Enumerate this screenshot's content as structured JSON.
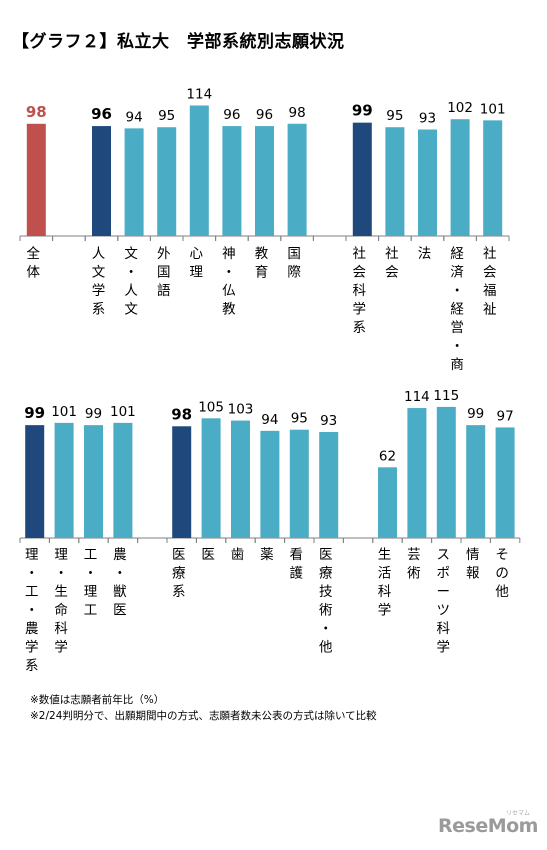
{
  "title": "【グラフ２】私立大　学部系統別志願状況",
  "notes": [
    "※数値は志願者前年比（%）",
    "※2/24判明分で、出願期間中の方式、志願者数未公表の方式は除いて比較"
  ],
  "logo": "ReseMom",
  "logo_kana": "リセマム",
  "colors": {
    "total": "#c0504d",
    "group": "#1f497d",
    "sub": "#4bacc6"
  },
  "chart_data": [
    {
      "type": "bar",
      "title": "",
      "xlabel": "",
      "ylabel": "",
      "ylim": [
        0,
        120
      ],
      "grid": false,
      "bars": [
        {
          "label": "全体",
          "value": 98,
          "kind": "total"
        },
        {
          "label": "",
          "value": null,
          "kind": "gap"
        },
        {
          "label": "人文学系",
          "value": 96,
          "kind": "group"
        },
        {
          "label": "文・人文",
          "value": 94,
          "kind": "sub"
        },
        {
          "label": "外国語",
          "value": 95,
          "kind": "sub"
        },
        {
          "label": "心理",
          "value": 114,
          "kind": "sub"
        },
        {
          "label": "神・仏教",
          "value": 96,
          "kind": "sub"
        },
        {
          "label": "教育",
          "value": 96,
          "kind": "sub"
        },
        {
          "label": "国際",
          "value": 98,
          "kind": "sub"
        },
        {
          "label": "",
          "value": null,
          "kind": "gap"
        },
        {
          "label": "社会科学系",
          "value": 99,
          "kind": "group"
        },
        {
          "label": "社会",
          "value": 95,
          "kind": "sub"
        },
        {
          "label": "法",
          "value": 93,
          "kind": "sub"
        },
        {
          "label": "経済・経営・商",
          "value": 102,
          "kind": "sub"
        },
        {
          "label": "社会福祉",
          "value": 101,
          "kind": "sub"
        }
      ]
    },
    {
      "type": "bar",
      "title": "",
      "xlabel": "",
      "ylabel": "",
      "ylim": [
        0,
        120
      ],
      "grid": false,
      "bars": [
        {
          "label": "理・工・農学系",
          "value": 99,
          "kind": "group"
        },
        {
          "label": "理・生命科学",
          "value": 101,
          "kind": "sub"
        },
        {
          "label": "工・理工",
          "value": 99,
          "kind": "sub"
        },
        {
          "label": "農・獣医",
          "value": 101,
          "kind": "sub"
        },
        {
          "label": "",
          "value": null,
          "kind": "gap"
        },
        {
          "label": "医療系",
          "value": 98,
          "kind": "group"
        },
        {
          "label": "医",
          "value": 105,
          "kind": "sub"
        },
        {
          "label": "歯",
          "value": 103,
          "kind": "sub"
        },
        {
          "label": "薬",
          "value": 94,
          "kind": "sub"
        },
        {
          "label": "看護",
          "value": 95,
          "kind": "sub"
        },
        {
          "label": "医療技術・他",
          "value": 93,
          "kind": "sub"
        },
        {
          "label": "",
          "value": null,
          "kind": "gap"
        },
        {
          "label": "生活科学",
          "value": 62,
          "kind": "sub"
        },
        {
          "label": "芸術",
          "value": 114,
          "kind": "sub"
        },
        {
          "label": "スポーツ科学",
          "value": 115,
          "kind": "sub"
        },
        {
          "label": "情報",
          "value": 99,
          "kind": "sub"
        },
        {
          "label": "その他",
          "value": 97,
          "kind": "sub"
        }
      ]
    }
  ]
}
